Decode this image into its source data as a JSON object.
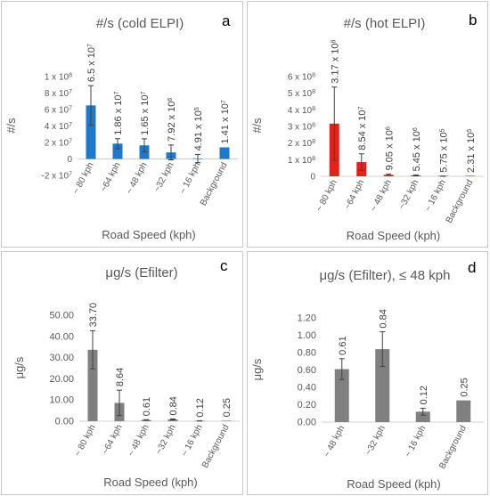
{
  "chart_data": [
    {
      "panel": "a",
      "type": "bar",
      "title": "#/s (cold ELPI)",
      "ylabel": "#/s",
      "xlabel": "Road Speed (kph)",
      "categories": [
        "~ 80 kph",
        "~64 kph",
        "~ 48 kph",
        "~32 kph",
        "~ 16 kph",
        "Background"
      ],
      "values": [
        65000000.0,
        18600000.0,
        16500000.0,
        7920000.0,
        491000.0,
        14100000.0
      ],
      "errors": [
        24000000.0,
        6000000.0,
        8000000.0,
        9000000.0,
        5000000.0,
        0
      ],
      "data_labels": [
        {
          "m": "6.5",
          "e": "7"
        },
        {
          "m": "1.86",
          "e": "7"
        },
        {
          "m": "1.65",
          "e": "7"
        },
        {
          "m": "7.92",
          "e": "6"
        },
        {
          "m": "4.91",
          "e": "5"
        },
        {
          "m": "1.41",
          "e": "7"
        }
      ],
      "ylim": [
        -20000000.0,
        100000000.0
      ],
      "yticks": [
        -20000000.0,
        0,
        20000000.0,
        40000000.0,
        60000000.0,
        80000000.0,
        100000000.0
      ],
      "ytick_labels": [
        {
          "m": "-2 x 10",
          "e": "7"
        },
        {
          "m": "0",
          "e": ""
        },
        {
          "m": "2 x 10",
          "e": "7"
        },
        {
          "m": "4 x 10",
          "e": "7"
        },
        {
          "m": "6 x 10",
          "e": "7"
        },
        {
          "m": "8 x 10",
          "e": "7"
        },
        {
          "m": "1 x 10",
          "e": "8"
        }
      ],
      "color": "#1f78c8"
    },
    {
      "panel": "b",
      "type": "bar",
      "title": "#/s (hot ELPI)",
      "ylabel": "#/s",
      "xlabel": "Road Speed (kph)",
      "categories": [
        "~ 80 kph",
        "~64 kph",
        "~ 48 kph",
        "~32 kph",
        "~ 16 kph",
        "Background"
      ],
      "values": [
        317000000.0,
        85400000.0,
        9050000.0,
        5450000.0,
        575000.0,
        231000.0
      ],
      "errors": [
        220000000.0,
        50000000.0,
        5000000.0,
        3000000.0,
        1000000.0,
        0
      ],
      "data_labels": [
        {
          "m": "3.17",
          "e": "8"
        },
        {
          "m": "8.54",
          "e": "7"
        },
        {
          "m": "9.05",
          "e": "6"
        },
        {
          "m": "5.45",
          "e": "6"
        },
        {
          "m": "5.75",
          "e": "5"
        },
        {
          "m": "2.31",
          "e": "5"
        }
      ],
      "ylim": [
        0,
        600000000.0
      ],
      "yticks": [
        0,
        100000000.0,
        200000000.0,
        300000000.0,
        400000000.0,
        500000000.0,
        600000000.0
      ],
      "ytick_labels": [
        {
          "m": "0",
          "e": ""
        },
        {
          "m": "1 x 10",
          "e": "8"
        },
        {
          "m": "2 x 10",
          "e": "8"
        },
        {
          "m": "3 x 10",
          "e": "8"
        },
        {
          "m": "4 x 10",
          "e": "8"
        },
        {
          "m": "5 x 10",
          "e": "8"
        },
        {
          "m": "6 x 10",
          "e": "8"
        }
      ],
      "color": "#e0231b",
      "bar_colors": [
        "#e0231b",
        "#e0231b",
        "#e0231b",
        "#e0231b",
        "#e0231b",
        "#e0231b"
      ]
    },
    {
      "panel": "c",
      "type": "bar",
      "title": "μg/s (Efilter)",
      "ylabel": "μg/s",
      "xlabel": "Road Speed (kph)",
      "categories": [
        "~ 80 kph",
        "~64 kph",
        "~ 48 kph",
        "~32 kph",
        "~ 16 kph",
        "Background"
      ],
      "values": [
        33.7,
        8.64,
        0.61,
        0.84,
        0.12,
        0.25
      ],
      "errors": [
        9.0,
        6.0,
        0.1,
        0.2,
        0.05,
        0
      ],
      "data_labels": [
        {
          "m": "33.70",
          "e": ""
        },
        {
          "m": "8.64",
          "e": ""
        },
        {
          "m": "0.61",
          "e": ""
        },
        {
          "m": "0.84",
          "e": ""
        },
        {
          "m": "0.12",
          "e": ""
        },
        {
          "m": "0.25",
          "e": ""
        }
      ],
      "ylim": [
        0,
        50
      ],
      "yticks": [
        0,
        10,
        20,
        30,
        40,
        50
      ],
      "ytick_labels": [
        {
          "m": "0.00",
          "e": ""
        },
        {
          "m": "10.00",
          "e": ""
        },
        {
          "m": "20.00",
          "e": ""
        },
        {
          "m": "30.00",
          "e": ""
        },
        {
          "m": "40.00",
          "e": ""
        },
        {
          "m": "50.00",
          "e": ""
        }
      ],
      "color": "#808080"
    },
    {
      "panel": "d",
      "type": "bar",
      "title": "μg/s (Efilter), ≤ 48 kph",
      "ylabel": "μg/s",
      "xlabel": "Road Speed (kph)",
      "categories": [
        "~ 48 kph",
        "~32 kph",
        "~ 16 kph",
        "Background"
      ],
      "values": [
        0.61,
        0.84,
        0.12,
        0.25
      ],
      "errors": [
        0.12,
        0.2,
        0.04,
        0
      ],
      "data_labels": [
        {
          "m": "0.61",
          "e": ""
        },
        {
          "m": "0.84",
          "e": ""
        },
        {
          "m": "0.12",
          "e": ""
        },
        {
          "m": "0.25",
          "e": ""
        }
      ],
      "ylim": [
        0,
        1.2
      ],
      "yticks": [
        0,
        0.2,
        0.4,
        0.6,
        0.8,
        1.0,
        1.2
      ],
      "ytick_labels": [
        {
          "m": "0.00",
          "e": ""
        },
        {
          "m": "0.20",
          "e": ""
        },
        {
          "m": "0.40",
          "e": ""
        },
        {
          "m": "0.60",
          "e": ""
        },
        {
          "m": "0.80",
          "e": ""
        },
        {
          "m": "1.00",
          "e": ""
        },
        {
          "m": "1.20",
          "e": ""
        }
      ],
      "color": "#808080"
    }
  ],
  "panel_letters": [
    "a",
    "b",
    "c",
    "d"
  ]
}
